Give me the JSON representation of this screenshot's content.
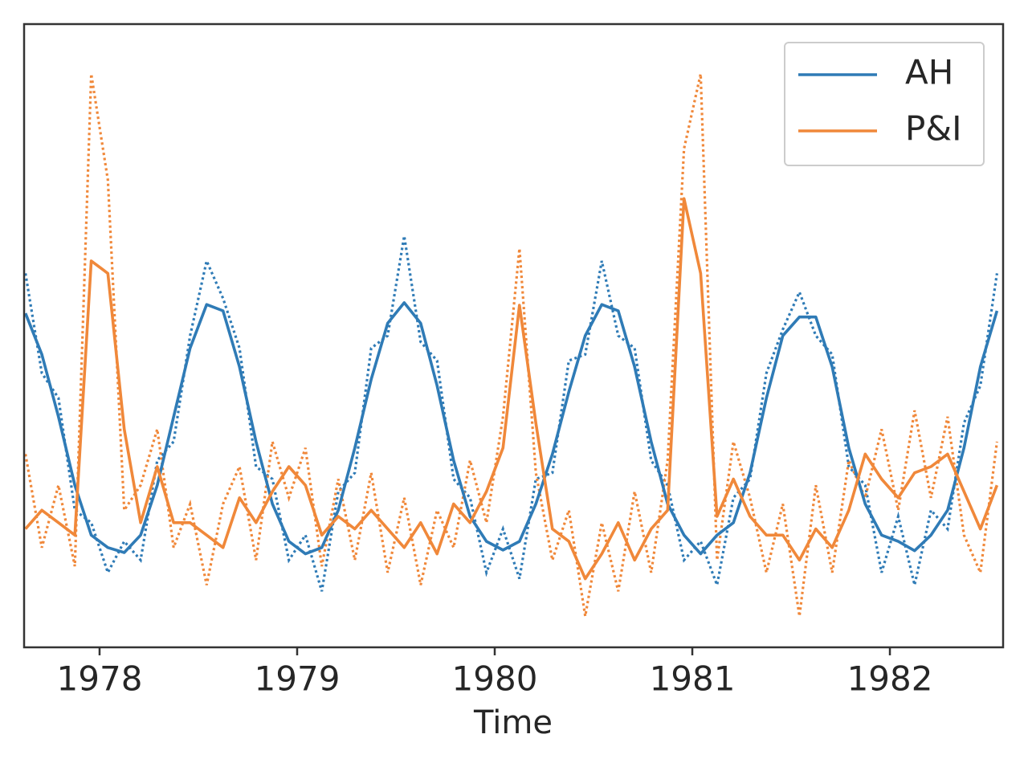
{
  "chart_data": {
    "type": "line",
    "x_label": "Time",
    "xlim": [
      1977.618,
      1982.573
    ],
    "xticks": [
      1978,
      1979,
      1980,
      1981,
      1982
    ],
    "ylim": [
      0,
      100
    ],
    "legend": "upper right",
    "x": [
      1977.625,
      1977.708,
      1977.792,
      1977.875,
      1977.958,
      1978.042,
      1978.125,
      1978.208,
      1978.292,
      1978.375,
      1978.458,
      1978.542,
      1978.625,
      1978.708,
      1978.792,
      1978.875,
      1978.958,
      1979.042,
      1979.125,
      1979.208,
      1979.292,
      1979.375,
      1979.458,
      1979.542,
      1979.625,
      1979.708,
      1979.792,
      1979.875,
      1979.958,
      1980.042,
      1980.125,
      1980.208,
      1980.292,
      1980.375,
      1980.458,
      1980.542,
      1980.625,
      1980.708,
      1980.792,
      1980.875,
      1980.958,
      1981.042,
      1981.125,
      1981.208,
      1981.292,
      1981.375,
      1981.458,
      1981.542,
      1981.625,
      1981.708,
      1981.792,
      1981.875,
      1981.958,
      1982.042,
      1982.125,
      1982.208,
      1982.292,
      1982.375,
      1982.458,
      1982.542
    ],
    "series": [
      {
        "name": "AH",
        "color": "#2f7bb6",
        "values": [
          53.6,
          47,
          37,
          26,
          18,
          16,
          15.2,
          18,
          26,
          37,
          48,
          55,
          54,
          45,
          33,
          23,
          17,
          15,
          16,
          22,
          32,
          43,
          52,
          55.3,
          52,
          42,
          30,
          21,
          17,
          15.6,
          17,
          23,
          31,
          41,
          50,
          55,
          54,
          45,
          33,
          23,
          18,
          15,
          18,
          20,
          28,
          40,
          50,
          53,
          53,
          45,
          32,
          23,
          18,
          17,
          15.5,
          18,
          22,
          32,
          45,
          54
        ],
        "raw_values": [
          60,
          44,
          40,
          22,
          20,
          12,
          17,
          14,
          30,
          33,
          50,
          62,
          56,
          48,
          29,
          27,
          14,
          18,
          9,
          25,
          28,
          48,
          50,
          66,
          49,
          46,
          27,
          24,
          12,
          19,
          11,
          27,
          28,
          46,
          47,
          62,
          50,
          48,
          30,
          26,
          14,
          17,
          10,
          24,
          27,
          44,
          51,
          57,
          50,
          47,
          29,
          26,
          12,
          21,
          10,
          22,
          19,
          36,
          42,
          60
        ]
      },
      {
        "name": "P&I",
        "color": "#f0883a",
        "values": [
          19,
          22,
          20,
          18,
          62,
          60,
          35,
          20,
          29,
          20,
          20,
          18,
          16,
          24,
          20,
          25,
          29,
          26,
          18,
          21,
          19,
          22,
          19,
          16,
          20,
          15,
          23,
          20,
          25,
          32,
          54.9,
          36,
          19,
          17,
          11,
          15,
          20,
          14,
          19,
          22,
          72,
          60,
          21,
          27,
          21,
          18,
          18,
          14,
          19,
          16,
          22,
          31,
          27,
          24,
          28,
          29,
          31,
          25,
          19,
          26
        ],
        "raw_values": [
          31,
          16,
          26,
          13,
          92,
          75,
          22,
          26,
          35,
          16,
          23,
          10,
          23,
          29,
          14,
          33,
          24,
          32,
          13,
          27,
          14,
          28,
          12,
          24,
          10,
          22,
          16,
          30,
          20,
          37,
          64,
          28,
          14,
          22,
          5,
          20,
          9,
          25,
          12,
          30,
          80,
          92,
          14,
          33,
          24,
          12,
          23,
          5,
          26,
          12,
          30,
          24,
          35,
          22,
          38,
          24,
          37,
          18,
          12,
          33
        ]
      }
    ]
  }
}
